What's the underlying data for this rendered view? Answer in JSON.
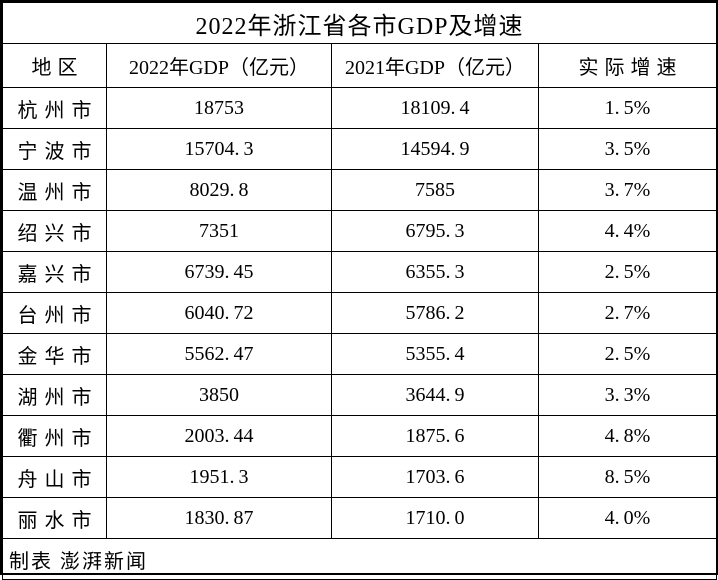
{
  "title": "2022年浙江省各市GDP及增速",
  "table": {
    "columns": [
      "地区",
      "2022年GDP（亿元）",
      "2021年GDP（亿元）",
      "实际增速"
    ],
    "rows": [
      [
        "杭州市",
        "18753",
        "18109.4",
        "1.5%"
      ],
      [
        "宁波市",
        "15704.3",
        "14594.9",
        "3.5%"
      ],
      [
        "温州市",
        "8029.8",
        "7585",
        "3.7%"
      ],
      [
        "绍兴市",
        "7351",
        "6795.3",
        "4.4%"
      ],
      [
        "嘉兴市",
        "6739.45",
        "6355.3",
        "2.5%"
      ],
      [
        "台州市",
        "6040.72",
        "5786.2",
        "2.7%"
      ],
      [
        "金华市",
        "5562.47",
        "5355.4",
        "2.5%"
      ],
      [
        "湖州市",
        "3850",
        "3644.9",
        "3.3%"
      ],
      [
        "衢州市",
        "2003.44",
        "1875.6",
        "4.8%"
      ],
      [
        "舟山市",
        "1951.3",
        "1703.6",
        "8.5%"
      ],
      [
        "丽水市",
        "1830.87",
        "1710.0",
        "4.0%"
      ]
    ],
    "footer": "制表 澎湃新闻"
  },
  "colors": {
    "border": "#000000",
    "background": "#ffffff",
    "text": "#000000"
  },
  "chart_data": {
    "type": "table",
    "title": "2022年浙江省各市GDP及增速",
    "columns": [
      "地区",
      "2022年GDP（亿元）",
      "2021年GDP（亿元）",
      "实际增速"
    ],
    "categories": [
      "杭州市",
      "宁波市",
      "温州市",
      "绍兴市",
      "嘉兴市",
      "台州市",
      "金华市",
      "湖州市",
      "衢州市",
      "舟山市",
      "丽水市"
    ],
    "series": [
      {
        "name": "2022年GDP（亿元）",
        "values": [
          18753,
          15704.3,
          8029.8,
          7351,
          6739.45,
          6040.72,
          5562.47,
          3850,
          2003.44,
          1951.3,
          1830.87
        ]
      },
      {
        "name": "2021年GDP（亿元）",
        "values": [
          18109.4,
          14594.9,
          7585,
          6795.3,
          6355.3,
          5786.2,
          5355.4,
          3644.9,
          1875.6,
          1703.6,
          1710.0
        ]
      },
      {
        "name": "实际增速(%)",
        "values": [
          1.5,
          3.5,
          3.7,
          4.4,
          2.5,
          2.7,
          2.5,
          3.3,
          4.8,
          8.5,
          4.0
        ]
      }
    ],
    "annotations": [
      "制表 澎湃新闻"
    ]
  }
}
